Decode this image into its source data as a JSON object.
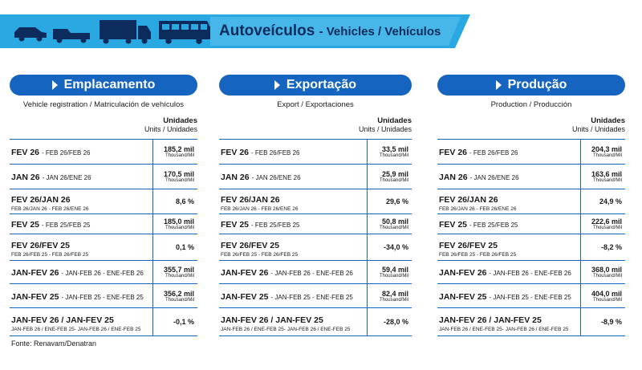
{
  "header": {
    "title": "Autoveículos",
    "subtitle": "- Vehicles / Vehículos"
  },
  "panels": [
    {
      "title": "Emplacamento",
      "subtitle": "Vehicle registration / Matriculación de vehículos",
      "units_title": "Unidades",
      "units_subtitle": "Units / Unidades",
      "rows": [
        {
          "label": "FEV 26",
          "detail": "- FEB 26/FEB 26",
          "value": "185,2 mil",
          "unit": "Thousand/Mil"
        },
        {
          "label": "JAN 26",
          "detail": "- JAN 26/ENE 26",
          "value": "170,5 mil",
          "unit": "Thousand/Mil"
        },
        {
          "label": "FEV 26/JAN 26",
          "sub": "FEB 26/JAN 26 - FEB 26/ENE 26",
          "value": "8,6 %"
        },
        {
          "label": "FEV 25",
          "detail": "- FEB 25/FEB 25",
          "value": "185,0 mil",
          "unit": "Thousand/Mil"
        },
        {
          "label": "FEV 26/FEV 25",
          "sub": "FEB 26/FEB 25 - FEB 26/FEB 25",
          "value": "0,1 %"
        },
        {
          "label": "JAN-FEV 26",
          "detail": "- JAN-FEB 26 - ENE-FEB 26",
          "value": "355,7 mil",
          "unit": "Thousand/Mil"
        },
        {
          "label": "JAN-FEV 25",
          "detail": "- JAN-FEB 25 - ENE-FEB 25",
          "value": "356,2 mil",
          "unit": "Thousand/Mil"
        },
        {
          "label": "JAN-FEV 26 / JAN-FEV 25",
          "sub": "JAN-FEB 26 / ENE-FEB 25- JAN-FEB 26 / ENE-FEB 25",
          "value": "-0,1 %"
        }
      ]
    },
    {
      "title": "Exportação",
      "subtitle": "Export / Exportaciones",
      "units_title": "Unidades",
      "units_subtitle": "Units / Unidades",
      "rows": [
        {
          "label": "FEV 26",
          "detail": "- FEB 26/FEB 26",
          "value": "33,5 mil",
          "unit": "Thousand/Mil"
        },
        {
          "label": "JAN 26",
          "detail": "- JAN 26/ENE 26",
          "value": "25,9 mil",
          "unit": "Thousand/Mil"
        },
        {
          "label": "FEV 26/JAN 26",
          "sub": "FEB 26/JAN 26 - FEB 26/ENE 26",
          "value": "29,6 %"
        },
        {
          "label": "FEV 25",
          "detail": "- FEB 25/FEB 25",
          "value": "50,8 mil",
          "unit": "Thousand/Mil"
        },
        {
          "label": "FEV 26/FEV 25",
          "sub": "FEB 26/FEB 25 - FEB 26/FEB 25",
          "value": "-34,0 %"
        },
        {
          "label": "JAN-FEV 26",
          "detail": "- JAN-FEB 26 - ENE-FEB 26",
          "value": "59,4 mil",
          "unit": "Thousand/Mil"
        },
        {
          "label": "JAN-FEV 25",
          "detail": "- JAN-FEB 25 - ENE-FEB 25",
          "value": "82,4 mil",
          "unit": "Thousand/Mil"
        },
        {
          "label": "JAN-FEV 26 / JAN-FEV 25",
          "sub": "JAN-FEB 26 / ENE-FEB 25- JAN-FEB 26 / ENE-FEB 25",
          "value": "-28,0 %"
        }
      ]
    },
    {
      "title": "Produção",
      "subtitle": "Production / Producción",
      "units_title": "Unidades",
      "units_subtitle": "Units / Unidades",
      "rows": [
        {
          "label": "FEV 26",
          "detail": "- FEB 26/FEB 26",
          "value": "204,3 mil",
          "unit": "Thousand/Mil"
        },
        {
          "label": "JAN 26",
          "detail": "- JAN 26/ENE 26",
          "value": "163,6 mil",
          "unit": "Thousand/Mil"
        },
        {
          "label": "FEV 26/JAN 26",
          "sub": "FEB 26/JAN 26 - FEB 26/ENE 26",
          "value": "24,9 %"
        },
        {
          "label": "FEV 25",
          "detail": "- FEB 25/FEB 25",
          "value": "222,6 mil",
          "unit": "Thousand/Mil"
        },
        {
          "label": "FEV 26/FEV 25",
          "sub": "FEB 26/FEB 25 - FEB 26/FEB 25",
          "value": "-8,2 %"
        },
        {
          "label": "JAN-FEV 26",
          "detail": "- JAN-FEB 26 - ENE-FEB 26",
          "value": "368,0 mil",
          "unit": "Thousand/Mil"
        },
        {
          "label": "JAN-FEV 25",
          "detail": "- JAN-FEB 25 - ENE-FEB 25",
          "value": "404,0 mil",
          "unit": "Thousand/Mil"
        },
        {
          "label": "JAN-FEV 26 / JAN-FEV 25",
          "sub": "JAN-FEB 26 / ENE-FEB 25- JAN-FEB 26 / ENE-FEB 25",
          "value": "-8,9 %"
        }
      ]
    }
  ],
  "footer": {
    "source": "Fonte: Renavam/Denatran"
  }
}
